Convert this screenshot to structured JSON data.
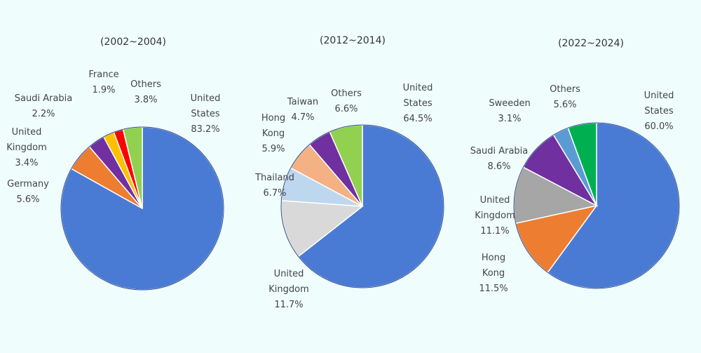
{
  "chart_data": [
    {
      "type": "pie",
      "title": "(2002~2004)",
      "categories": [
        "United States",
        "Germany",
        "United Kingdom",
        "Saudi Arabia",
        "France",
        "Others"
      ],
      "values": [
        83.2,
        5.6,
        3.4,
        2.2,
        1.9,
        3.8
      ],
      "value_labels": [
        "83.2%",
        "5.6%",
        "3.4%",
        "2.2%",
        "1.9%",
        "3.8%"
      ],
      "colors": [
        "#4a7bd4",
        "#ed7d31",
        "#7030a0",
        "#ffc000",
        "#ff0000",
        "#92d050"
      ]
    },
    {
      "type": "pie",
      "title": "(2012~2014)",
      "categories": [
        "United States",
        "United Kingdom",
        "Thailand",
        "Hong Kong",
        "Taiwan",
        "Others"
      ],
      "values": [
        64.5,
        11.7,
        6.7,
        5.9,
        4.7,
        6.6
      ],
      "value_labels": [
        "64.5%",
        "11.7%",
        "6.7%",
        "5.9%",
        "4.7%",
        "6.6%"
      ],
      "colors": [
        "#4a7bd4",
        "#d9d9d9",
        "#bdd7ee",
        "#f4b183",
        "#7030a0",
        "#92d050"
      ]
    },
    {
      "type": "pie",
      "title": "(2022~2024)",
      "categories": [
        "United States",
        "Hong Kong",
        "United Kingdom",
        "Saudi Arabia",
        "Sweeden",
        "Others"
      ],
      "values": [
        60.0,
        11.5,
        11.1,
        8.6,
        3.1,
        5.6
      ],
      "value_labels": [
        "60.0%",
        "11.5%",
        "11.1%",
        "8.6%",
        "3.1%",
        "5.6%"
      ],
      "colors": [
        "#4a7bd4",
        "#ed7d31",
        "#a6a6a6",
        "#7030a0",
        "#5b9bd5",
        "#00b050"
      ]
    }
  ]
}
